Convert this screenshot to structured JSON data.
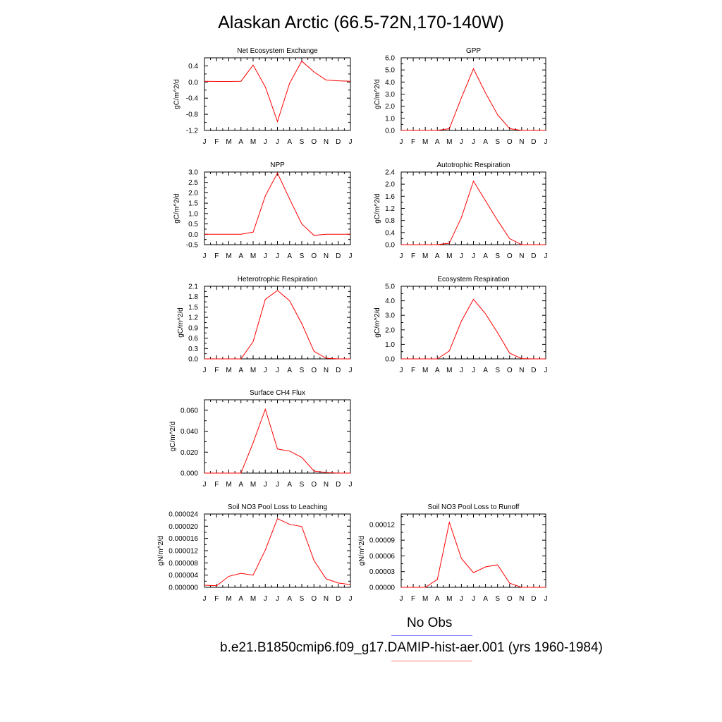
{
  "title": "Alaskan Arctic (66.5-72N,170-140W)",
  "legend": {
    "obs_label": "No Obs",
    "obs_color": "#7777ff",
    "model_label": "b.e21.B1850cmip6.f09_g17.DAMIP-hist-aer.001 (yrs 1960-1984)",
    "model_color": "#ff7777"
  },
  "line_color": "#ff0000",
  "chart_data": [
    {
      "type": "line",
      "title": "Net Ecosystem Exchange",
      "ylabel": "gC/m^2/d",
      "categories": [
        "J",
        "F",
        "M",
        "A",
        "M",
        "J",
        "J",
        "A",
        "S",
        "O",
        "N",
        "D",
        "J"
      ],
      "ylim": [
        -1.2,
        0.6
      ],
      "yticks": [
        "0.4",
        "0.0",
        "-0.4",
        "-0.8",
        "-1.2"
      ],
      "ytick_values": [
        0.4,
        0.0,
        -0.4,
        -0.8,
        -1.2
      ],
      "values": [
        0.02,
        0.015,
        0.015,
        0.02,
        0.42,
        -0.12,
        -0.98,
        -0.03,
        0.52,
        0.25,
        0.05,
        0.03,
        0.02
      ]
    },
    {
      "type": "line",
      "title": "GPP",
      "ylabel": "gC/m^2/d",
      "categories": [
        "J",
        "F",
        "M",
        "A",
        "M",
        "J",
        "J",
        "A",
        "S",
        "O",
        "N",
        "D",
        "J"
      ],
      "ylim": [
        0.0,
        6.0
      ],
      "yticks": [
        "6.0",
        "5.0",
        "4.0",
        "3.0",
        "2.0",
        "1.0",
        "0.0"
      ],
      "ytick_values": [
        6.0,
        5.0,
        4.0,
        3.0,
        2.0,
        1.0,
        0.0
      ],
      "values": [
        0.0,
        0.0,
        0.0,
        0.0,
        0.15,
        2.7,
        5.1,
        3.1,
        1.3,
        0.15,
        0.0,
        0.0,
        0.0
      ]
    },
    {
      "type": "line",
      "title": "NPP",
      "ylabel": "gC/m^2/d",
      "categories": [
        "J",
        "F",
        "M",
        "A",
        "M",
        "J",
        "J",
        "A",
        "S",
        "O",
        "N",
        "D",
        "J"
      ],
      "ylim": [
        -0.5,
        3.0
      ],
      "yticks": [
        "3.0",
        "2.5",
        "2.0",
        "1.5",
        "1.0",
        "0.5",
        "0.0",
        "-0.5"
      ],
      "ytick_values": [
        3.0,
        2.5,
        2.0,
        1.5,
        1.0,
        0.5,
        0.0,
        -0.5
      ],
      "values": [
        0.0,
        0.0,
        0.0,
        0.0,
        0.1,
        1.85,
        2.95,
        1.7,
        0.5,
        -0.05,
        0.0,
        0.0,
        0.0
      ]
    },
    {
      "type": "line",
      "title": "Autotrophic Respiration",
      "ylabel": "gC/m^2/d",
      "categories": [
        "J",
        "F",
        "M",
        "A",
        "M",
        "J",
        "J",
        "A",
        "S",
        "O",
        "N",
        "D",
        "J"
      ],
      "ylim": [
        0.0,
        2.4
      ],
      "yticks": [
        "2.4",
        "2.0",
        "1.6",
        "1.2",
        "0.8",
        "0.4",
        "0.0"
      ],
      "ytick_values": [
        2.4,
        2.0,
        1.6,
        1.2,
        0.8,
        0.4,
        0.0
      ],
      "values": [
        0.0,
        0.0,
        0.0,
        0.0,
        0.05,
        0.9,
        2.1,
        1.45,
        0.8,
        0.2,
        0.0,
        0.0,
        0.0
      ]
    },
    {
      "type": "line",
      "title": "Heterotrophic Respiration",
      "ylabel": "gC/m^2/d",
      "categories": [
        "J",
        "F",
        "M",
        "A",
        "M",
        "J",
        "J",
        "A",
        "S",
        "O",
        "N",
        "D",
        "J"
      ],
      "ylim": [
        0.0,
        2.1
      ],
      "yticks": [
        "2.1",
        "1.8",
        "1.5",
        "1.2",
        "0.9",
        "0.6",
        "0.3",
        "0.0"
      ],
      "ytick_values": [
        2.1,
        1.8,
        1.5,
        1.2,
        0.9,
        0.6,
        0.3,
        0.0
      ],
      "values": [
        0.0,
        0.0,
        0.0,
        0.0,
        0.5,
        1.72,
        1.98,
        1.68,
        1.02,
        0.22,
        0.02,
        0.0,
        0.0
      ]
    },
    {
      "type": "line",
      "title": "Ecosystem Respiration",
      "ylabel": "gC/m^2/d",
      "categories": [
        "J",
        "F",
        "M",
        "A",
        "M",
        "J",
        "J",
        "A",
        "S",
        "O",
        "N",
        "D",
        "J"
      ],
      "ylim": [
        0.0,
        5.0
      ],
      "yticks": [
        "5.0",
        "4.0",
        "3.0",
        "2.0",
        "1.0",
        "0.0"
      ],
      "ytick_values": [
        5.0,
        4.0,
        3.0,
        2.0,
        1.0,
        0.0
      ],
      "values": [
        0.0,
        0.0,
        0.0,
        0.0,
        0.55,
        2.6,
        4.1,
        3.1,
        1.8,
        0.4,
        0.02,
        0.0,
        0.0
      ]
    },
    {
      "type": "line",
      "title": "Surface CH4 Flux",
      "ylabel": "gC/m^2/d",
      "categories": [
        "J",
        "F",
        "M",
        "A",
        "M",
        "J",
        "J",
        "A",
        "S",
        "O",
        "N",
        "D",
        "J"
      ],
      "ylim": [
        0.0,
        0.07
      ],
      "yticks": [
        "0.060",
        "0.040",
        "0.020",
        "0.000"
      ],
      "ytick_values": [
        0.06,
        0.04,
        0.02,
        0.0
      ],
      "values": [
        0.0,
        0.0,
        0.0,
        0.0,
        0.029,
        0.061,
        0.023,
        0.021,
        0.015,
        0.002,
        0.0005,
        0.0,
        0.0
      ]
    },
    {
      "type": "line",
      "title": "Soil NO3 Pool Loss to Leaching",
      "ylabel": "gN/m^2/d",
      "categories": [
        "J",
        "F",
        "M",
        "A",
        "M",
        "J",
        "J",
        "A",
        "S",
        "O",
        "N",
        "D",
        "J"
      ],
      "ylim": [
        0.0,
        2.4e-05
      ],
      "yticks": [
        "0.000024",
        "0.000020",
        "0.000016",
        "0.000012",
        "0.000008",
        "0.000004",
        "0.000000"
      ],
      "ytick_values": [
        2.4e-05,
        2e-05,
        1.6e-05,
        1.2e-05,
        8e-06,
        4e-06,
        0.0
      ],
      "values": [
        7e-07,
        5e-07,
        3.6e-06,
        4.6e-06,
        4e-06,
        1.22e-05,
        2.25e-05,
        2.06e-05,
        1.99e-05,
        8.8e-06,
        2.8e-06,
        1.4e-06,
        9e-07
      ]
    },
    {
      "type": "line",
      "title": "Soil NO3 Pool Loss to Runoff",
      "ylabel": "gN/m^2/d",
      "categories": [
        "J",
        "F",
        "M",
        "A",
        "M",
        "J",
        "J",
        "A",
        "S",
        "O",
        "N",
        "D",
        "J"
      ],
      "ylim": [
        0.0,
        0.00014
      ],
      "yticks": [
        "0.00012",
        "0.00009",
        "0.00006",
        "0.00003",
        "0.00000"
      ],
      "ytick_values": [
        0.00012,
        9e-05,
        6e-05,
        3e-05,
        0.0
      ],
      "values": [
        0.0,
        0.0,
        0.0,
        1.5e-05,
        0.000124,
        5.5e-05,
        2.8e-05,
        3.9e-05,
        4.3e-05,
        8e-06,
        0.0,
        0.0,
        0.0
      ]
    }
  ]
}
